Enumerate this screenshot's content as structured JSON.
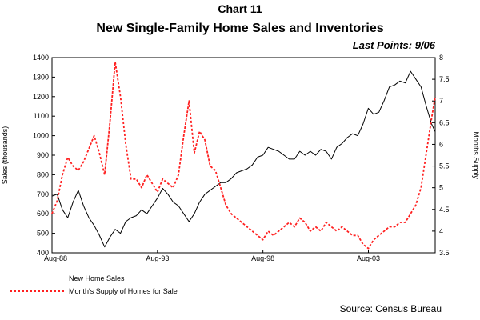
{
  "chart_number": "Chart 11",
  "chart_data": {
    "type": "line",
    "title": "New Single-Family Home Sales and Inventories",
    "subtitle": "Last Points: 9/06",
    "x_tick_labels": [
      "Aug-88",
      "Aug-93",
      "Aug-98",
      "Aug-03"
    ],
    "x_range": [
      1988.583,
      2006.75
    ],
    "y_left_label": "Sales (thousands)",
    "y_left_range": [
      400,
      1400
    ],
    "y_left_ticks": [
      400,
      500,
      600,
      700,
      800,
      900,
      1000,
      1100,
      1200,
      1300,
      1400
    ],
    "y_right_label": "Months Supply",
    "y_right_range": [
      3.5,
      8
    ],
    "y_right_ticks": [
      3.5,
      4,
      4.5,
      5,
      5.5,
      6,
      6.5,
      7,
      7.5,
      8
    ],
    "series": [
      {
        "name": "New Home Sales",
        "axis": "left",
        "color": "#000000",
        "dash": "solid",
        "points": [
          [
            1988.58,
            690
          ],
          [
            1988.83,
            700
          ],
          [
            1989.08,
            620
          ],
          [
            1989.33,
            580
          ],
          [
            1989.58,
            660
          ],
          [
            1989.83,
            720
          ],
          [
            1990.08,
            640
          ],
          [
            1990.33,
            580
          ],
          [
            1990.58,
            540
          ],
          [
            1990.83,
            490
          ],
          [
            1991.08,
            430
          ],
          [
            1991.33,
            480
          ],
          [
            1991.58,
            520
          ],
          [
            1991.83,
            500
          ],
          [
            1992.08,
            560
          ],
          [
            1992.33,
            580
          ],
          [
            1992.58,
            590
          ],
          [
            1992.83,
            620
          ],
          [
            1993.08,
            600
          ],
          [
            1993.33,
            640
          ],
          [
            1993.58,
            680
          ],
          [
            1993.83,
            730
          ],
          [
            1994.08,
            700
          ],
          [
            1994.33,
            660
          ],
          [
            1994.58,
            640
          ],
          [
            1994.83,
            600
          ],
          [
            1995.08,
            560
          ],
          [
            1995.33,
            600
          ],
          [
            1995.58,
            660
          ],
          [
            1995.83,
            700
          ],
          [
            1996.08,
            720
          ],
          [
            1996.33,
            740
          ],
          [
            1996.58,
            760
          ],
          [
            1996.83,
            760
          ],
          [
            1997.08,
            780
          ],
          [
            1997.33,
            810
          ],
          [
            1997.58,
            820
          ],
          [
            1997.83,
            830
          ],
          [
            1998.08,
            850
          ],
          [
            1998.33,
            890
          ],
          [
            1998.58,
            900
          ],
          [
            1998.83,
            940
          ],
          [
            1999.08,
            930
          ],
          [
            1999.33,
            920
          ],
          [
            1999.58,
            900
          ],
          [
            1999.83,
            880
          ],
          [
            2000.08,
            880
          ],
          [
            2000.33,
            920
          ],
          [
            2000.58,
            900
          ],
          [
            2000.83,
            920
          ],
          [
            2001.08,
            900
          ],
          [
            2001.33,
            930
          ],
          [
            2001.58,
            920
          ],
          [
            2001.83,
            880
          ],
          [
            2002.08,
            940
          ],
          [
            2002.33,
            960
          ],
          [
            2002.58,
            990
          ],
          [
            2002.83,
            1010
          ],
          [
            2003.08,
            1000
          ],
          [
            2003.33,
            1060
          ],
          [
            2003.58,
            1140
          ],
          [
            2003.83,
            1110
          ],
          [
            2004.08,
            1120
          ],
          [
            2004.33,
            1180
          ],
          [
            2004.58,
            1250
          ],
          [
            2004.83,
            1260
          ],
          [
            2005.08,
            1280
          ],
          [
            2005.33,
            1270
          ],
          [
            2005.58,
            1330
          ],
          [
            2005.83,
            1290
          ],
          [
            2006.08,
            1250
          ],
          [
            2006.33,
            1150
          ],
          [
            2006.58,
            1060
          ],
          [
            2006.75,
            1020
          ]
        ]
      },
      {
        "name": "Month's Supply of Homes for Sale",
        "axis": "right",
        "color": "#ff2020",
        "dash": "dashed",
        "points": [
          [
            1988.58,
            4.4
          ],
          [
            1988.83,
            4.7
          ],
          [
            1989.08,
            5.3
          ],
          [
            1989.33,
            5.7
          ],
          [
            1989.58,
            5.5
          ],
          [
            1989.83,
            5.4
          ],
          [
            1990.08,
            5.6
          ],
          [
            1990.33,
            5.9
          ],
          [
            1990.58,
            6.2
          ],
          [
            1990.83,
            5.8
          ],
          [
            1991.08,
            5.3
          ],
          [
            1991.33,
            6.5
          ],
          [
            1991.58,
            7.9
          ],
          [
            1991.83,
            7.1
          ],
          [
            1992.08,
            6.0
          ],
          [
            1992.33,
            5.2
          ],
          [
            1992.58,
            5.2
          ],
          [
            1992.83,
            5.0
          ],
          [
            1993.08,
            5.3
          ],
          [
            1993.33,
            5.1
          ],
          [
            1993.58,
            4.9
          ],
          [
            1993.83,
            5.2
          ],
          [
            1994.08,
            5.1
          ],
          [
            1994.33,
            5.0
          ],
          [
            1994.58,
            5.3
          ],
          [
            1994.83,
            6.2
          ],
          [
            1995.08,
            7.0
          ],
          [
            1995.33,
            5.8
          ],
          [
            1995.58,
            6.3
          ],
          [
            1995.83,
            6.1
          ],
          [
            1996.08,
            5.5
          ],
          [
            1996.33,
            5.4
          ],
          [
            1996.58,
            5.0
          ],
          [
            1996.83,
            4.6
          ],
          [
            1997.08,
            4.4
          ],
          [
            1997.33,
            4.3
          ],
          [
            1997.58,
            4.2
          ],
          [
            1997.83,
            4.1
          ],
          [
            1998.08,
            4.0
          ],
          [
            1998.33,
            3.9
          ],
          [
            1998.58,
            3.8
          ],
          [
            1998.83,
            4.0
          ],
          [
            1999.08,
            3.9
          ],
          [
            1999.33,
            4.0
          ],
          [
            1999.58,
            4.1
          ],
          [
            1999.83,
            4.2
          ],
          [
            2000.08,
            4.1
          ],
          [
            2000.33,
            4.3
          ],
          [
            2000.58,
            4.2
          ],
          [
            2000.83,
            4.0
          ],
          [
            2001.08,
            4.1
          ],
          [
            2001.33,
            4.0
          ],
          [
            2001.58,
            4.2
          ],
          [
            2001.83,
            4.1
          ],
          [
            2002.08,
            4.0
          ],
          [
            2002.33,
            4.1
          ],
          [
            2002.58,
            4.0
          ],
          [
            2002.83,
            3.9
          ],
          [
            2003.08,
            3.9
          ],
          [
            2003.33,
            3.7
          ],
          [
            2003.58,
            3.6
          ],
          [
            2003.83,
            3.8
          ],
          [
            2004.08,
            3.9
          ],
          [
            2004.33,
            4.0
          ],
          [
            2004.58,
            4.1
          ],
          [
            2004.83,
            4.1
          ],
          [
            2005.08,
            4.2
          ],
          [
            2005.33,
            4.2
          ],
          [
            2005.58,
            4.4
          ],
          [
            2005.83,
            4.6
          ],
          [
            2006.08,
            5.0
          ],
          [
            2006.33,
            5.8
          ],
          [
            2006.58,
            6.6
          ],
          [
            2006.75,
            7.1
          ]
        ]
      }
    ],
    "legend_placement": "bottom-left",
    "source": "Source: Census Bureau"
  }
}
